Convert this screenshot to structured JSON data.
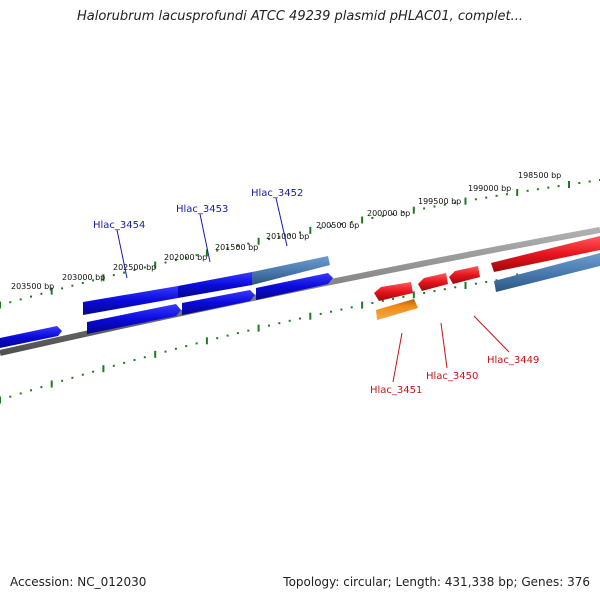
{
  "title": "Halorubrum lacusprofundi ATCC 49239 plasmid pHLAC01, complet...",
  "footer": {
    "accession": "Accession: NC_012030",
    "summary": "Topology: circular; Length: 431,338 bp; Genes: 376"
  },
  "ticks": [
    "203500 bp",
    "203000 bp",
    "202500 bp",
    "202000 bp",
    "201500 bp",
    "201000 bp",
    "200500 bp",
    "200000 bp",
    "199500 bp",
    "199000 bp",
    "198500 bp"
  ],
  "genes": {
    "g3454": "Hlac_3454",
    "g3453": "Hlac_3453",
    "g3452": "Hlac_3452",
    "g3451": "Hlac_3451",
    "g3450": "Hlac_3450",
    "g3449": "Hlac_3449"
  },
  "colors": {
    "blue_gene": "#0a0adc",
    "steel_gene": "#4a7bb0",
    "red_gene": "#e8141e",
    "orange_gene": "#f08c14",
    "backbone": "#808080",
    "tick": "#1f7a1f",
    "blue_label": "#1a1ab0",
    "red_label": "#c81414"
  }
}
